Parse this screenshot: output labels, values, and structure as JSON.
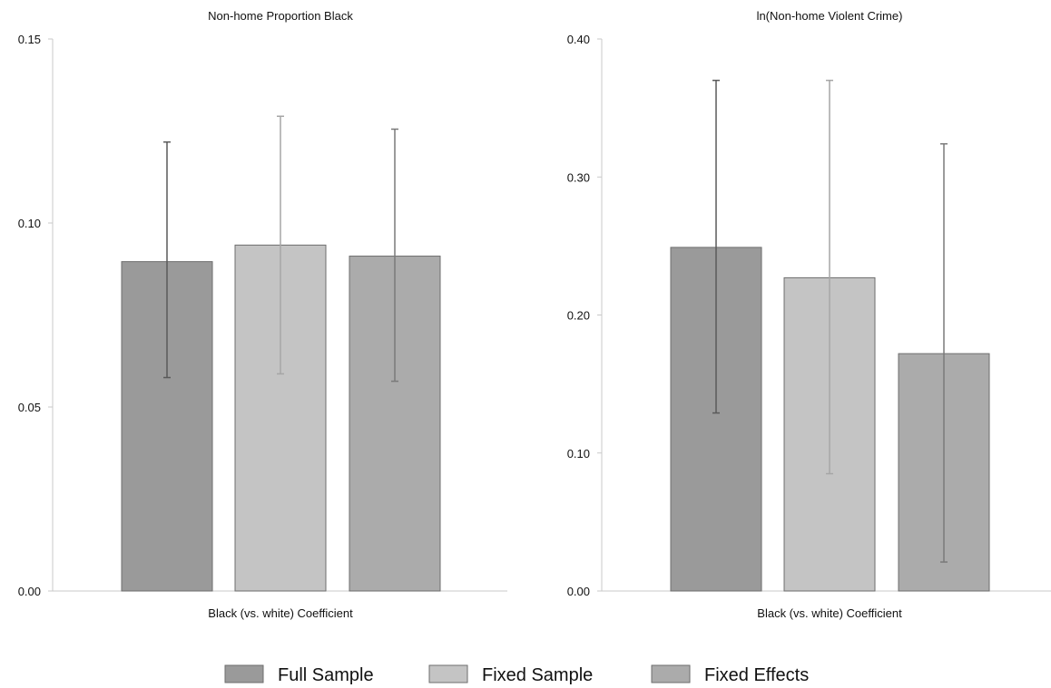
{
  "chart_data": [
    {
      "type": "bar",
      "title": "Non-home Proportion Black",
      "xlabel": "Black (vs. white) Coefficient",
      "ylabel": "",
      "ylim": [
        0,
        0.15
      ],
      "yticks": [
        "0.00",
        "0.05",
        "0.10",
        "0.15"
      ],
      "grid": false,
      "series": [
        {
          "name": "Full Sample",
          "value": 0.0895,
          "ci_low": 0.058,
          "ci_high": 0.122
        },
        {
          "name": "Fixed Sample",
          "value": 0.094,
          "ci_low": 0.059,
          "ci_high": 0.129
        },
        {
          "name": "Fixed Effects",
          "value": 0.091,
          "ci_low": 0.057,
          "ci_high": 0.1255
        }
      ]
    },
    {
      "type": "bar",
      "title": "ln(Non-home Violent Crime)",
      "xlabel": "Black (vs. white) Coefficient",
      "ylabel": "",
      "ylim": [
        0,
        0.4
      ],
      "yticks": [
        "0.00",
        "0.10",
        "0.20",
        "0.30",
        "0.40"
      ],
      "grid": false,
      "series": [
        {
          "name": "Full Sample",
          "value": 0.249,
          "ci_low": 0.129,
          "ci_high": 0.37
        },
        {
          "name": "Fixed Sample",
          "value": 0.227,
          "ci_low": 0.085,
          "ci_high": 0.37
        },
        {
          "name": "Fixed Effects",
          "value": 0.172,
          "ci_low": 0.021,
          "ci_high": 0.324
        }
      ]
    }
  ],
  "legend": {
    "position": "bottom",
    "items": [
      {
        "label": "Full Sample",
        "color": "#9a9a9a"
      },
      {
        "label": "Fixed Sample",
        "color": "#c4c4c4"
      },
      {
        "label": "Fixed Effects",
        "color": "#ababab"
      }
    ]
  },
  "colors": {
    "bar_outline": "#6e6e6e",
    "axis": "#c8c8c8",
    "errorbar": [
      "#5a5a5a",
      "#a6a6a6",
      "#7a7a7a"
    ]
  }
}
